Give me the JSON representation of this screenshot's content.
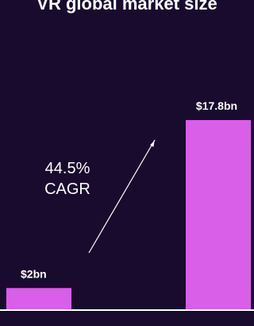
{
  "chart_data": {
    "type": "bar",
    "title": "VR global market size",
    "categories": [
      "",
      ""
    ],
    "values": [
      2,
      17.8
    ],
    "data_labels": [
      "$2bn",
      "$17.8bn"
    ],
    "unit": "$bn",
    "ylim": [
      0,
      17.8
    ],
    "grid": false,
    "annotation": {
      "line1": "44.5%",
      "line2": "CAGR"
    }
  },
  "colors": {
    "background": "#190b2e",
    "bar": "#d95ee8",
    "text": "#ffffff",
    "axis": "#ffffff",
    "arrow": "#ffffff"
  }
}
